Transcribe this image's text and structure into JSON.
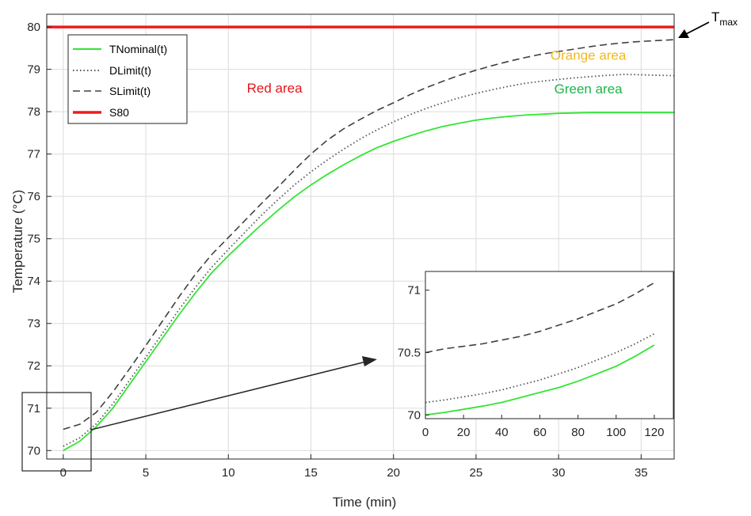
{
  "chart_data": {
    "type": "line",
    "xlabel": "Time (min)",
    "ylabel": "Temperature (°C)",
    "xlim": [
      -1,
      37
    ],
    "ylim": [
      69.8,
      80.3
    ],
    "xticks": [
      "0",
      "5",
      "10",
      "15",
      "20",
      "25",
      "30",
      "35"
    ],
    "yticks": [
      "70",
      "71",
      "72",
      "73",
      "74",
      "75",
      "76",
      "77",
      "78",
      "79",
      "80"
    ],
    "grid": true,
    "legend_position": "top-left",
    "series": [
      {
        "name": "TNominal(t)",
        "color": "#33e533",
        "style": "solid",
        "x": [
          0,
          1,
          2,
          3,
          4,
          5,
          6,
          7,
          8,
          9,
          10,
          11,
          12,
          13,
          14,
          15,
          16,
          17,
          18,
          19,
          20,
          21,
          22,
          23,
          24,
          25,
          26,
          27,
          28,
          29,
          30,
          31,
          32,
          33,
          34,
          35,
          36,
          37
        ],
        "y": [
          70.0,
          70.22,
          70.56,
          71.0,
          71.55,
          72.1,
          72.65,
          73.2,
          73.72,
          74.2,
          74.6,
          74.97,
          75.33,
          75.67,
          75.99,
          76.27,
          76.52,
          76.75,
          76.96,
          77.15,
          77.3,
          77.43,
          77.55,
          77.65,
          77.73,
          77.8,
          77.85,
          77.89,
          77.92,
          77.94,
          77.96,
          77.97,
          77.98,
          77.98,
          77.98,
          77.98,
          77.98,
          77.98
        ]
      },
      {
        "name": "DLimit(t)",
        "color": "#555555",
        "style": "dotted",
        "x": [
          0,
          1,
          2,
          3,
          4,
          5,
          6,
          7,
          8,
          9,
          10,
          11,
          12,
          13,
          14,
          15,
          16,
          17,
          18,
          19,
          20,
          21,
          22,
          23,
          24,
          25,
          26,
          27,
          28,
          29,
          30,
          31,
          32,
          33,
          34,
          35,
          36,
          37
        ],
        "y": [
          70.1,
          70.3,
          70.63,
          71.1,
          71.65,
          72.2,
          72.76,
          73.32,
          73.85,
          74.33,
          74.75,
          75.15,
          75.55,
          75.92,
          76.27,
          76.58,
          76.86,
          77.12,
          77.36,
          77.57,
          77.76,
          77.93,
          78.08,
          78.21,
          78.33,
          78.43,
          78.52,
          78.6,
          78.67,
          78.72,
          78.76,
          78.8,
          78.83,
          78.86,
          78.88,
          78.87,
          78.86,
          78.85
        ]
      },
      {
        "name": "SLimit(t)",
        "color": "#404040",
        "style": "dashed",
        "x": [
          0,
          1,
          2,
          3,
          4,
          5,
          6,
          7,
          8,
          9,
          10,
          11,
          12,
          13,
          14,
          15,
          16,
          17,
          18,
          19,
          20,
          21,
          22,
          23,
          24,
          25,
          26,
          27,
          28,
          29,
          30,
          31,
          32,
          33,
          34,
          35,
          36,
          37
        ],
        "y": [
          70.5,
          70.62,
          70.9,
          71.38,
          71.92,
          72.48,
          73.05,
          73.62,
          74.16,
          74.63,
          75.03,
          75.43,
          75.83,
          76.22,
          76.62,
          77.0,
          77.33,
          77.6,
          77.82,
          78.03,
          78.21,
          78.4,
          78.57,
          78.72,
          78.86,
          78.98,
          79.09,
          79.19,
          79.28,
          79.36,
          79.42,
          79.48,
          79.54,
          79.59,
          79.63,
          79.66,
          79.68,
          79.7
        ]
      },
      {
        "name": "S80",
        "color": "#ee1c1c",
        "style": "solid",
        "x": [
          -1,
          37
        ],
        "y": [
          80,
          80
        ]
      }
    ],
    "annotations": [
      {
        "text": "Red area",
        "color": "#e8141c",
        "x": 12.8,
        "y": 78.45
      },
      {
        "text": "Orange area",
        "color": "#f2b91d",
        "x": 31.8,
        "y": 79.23
      },
      {
        "text": "Green area",
        "color": "#1cb44a",
        "x": 31.8,
        "y": 78.43
      },
      {
        "text": "T",
        "sub": "max"
      }
    ],
    "inset": {
      "xlim": [
        0,
        130
      ],
      "ylim": [
        69.97,
        71.15
      ],
      "xticks": [
        "0",
        "20",
        "40",
        "60",
        "80",
        "100",
        "120"
      ],
      "yticks": [
        "70",
        "70.5",
        "71"
      ],
      "grid": false,
      "series": [
        {
          "name": "TNominal(t)",
          "x": [
            0,
            10,
            20,
            30,
            40,
            50,
            60,
            70,
            80,
            90,
            100,
            110,
            120
          ],
          "y": [
            70.0,
            70.02,
            70.045,
            70.07,
            70.1,
            70.14,
            70.18,
            70.22,
            70.27,
            70.33,
            70.39,
            70.47,
            70.56
          ]
        },
        {
          "name": "DLimit(t)",
          "x": [
            0,
            10,
            20,
            30,
            40,
            50,
            60,
            70,
            80,
            90,
            100,
            110,
            120
          ],
          "y": [
            70.1,
            70.12,
            70.145,
            70.17,
            70.2,
            70.24,
            70.28,
            70.33,
            70.38,
            70.44,
            70.5,
            70.57,
            70.65
          ]
        },
        {
          "name": "SLimit(t)",
          "x": [
            0,
            10,
            20,
            30,
            40,
            50,
            60,
            70,
            80,
            90,
            100,
            110,
            120
          ],
          "y": [
            70.5,
            70.53,
            70.55,
            70.57,
            70.6,
            70.63,
            70.67,
            70.72,
            70.77,
            70.83,
            70.89,
            70.97,
            71.06
          ]
        }
      ]
    }
  }
}
